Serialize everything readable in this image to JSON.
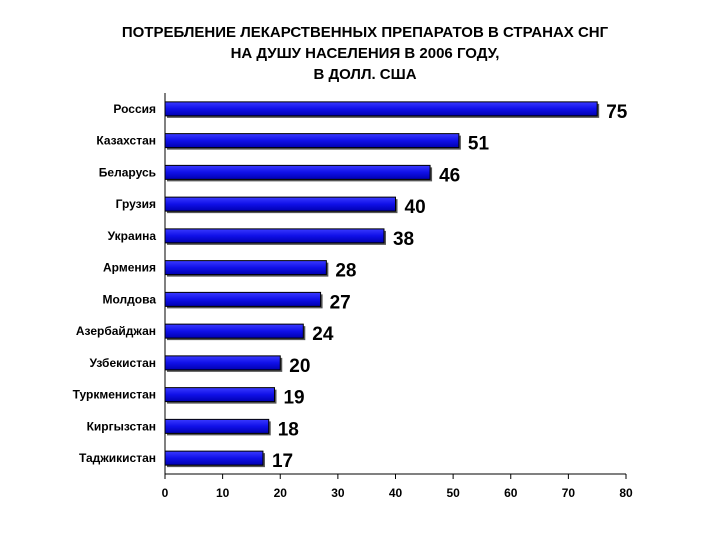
{
  "chart_data": {
    "type": "bar",
    "orientation": "horizontal",
    "title_lines": [
      "ПОТРЕБЛЕНИЕ ЛЕКАРСТВЕННЫХ ПРЕПАРАТОВ В СТРАНАХ СНГ",
      "НА ДУШУ НАСЕЛЕНИЯ В 2006 ГОДУ,",
      "В ДОЛЛ. США"
    ],
    "categories": [
      "Россия",
      "Казахстан",
      "Беларусь",
      "Грузия",
      "Украина",
      "Армения",
      "Молдова",
      "Азербайджан",
      "Узбекистан",
      "Туркменистан",
      "Киргызстан",
      "Таджикистан"
    ],
    "values": [
      75,
      51,
      46,
      40,
      38,
      28,
      27,
      24,
      20,
      19,
      18,
      17
    ],
    "xlim": [
      0,
      80
    ],
    "xticks": [
      "0",
      "10",
      "20",
      "30",
      "40",
      "50",
      "60",
      "70",
      "80"
    ],
    "grid": false,
    "bar_color": "#1414e6",
    "xlabel": "",
    "ylabel": ""
  }
}
